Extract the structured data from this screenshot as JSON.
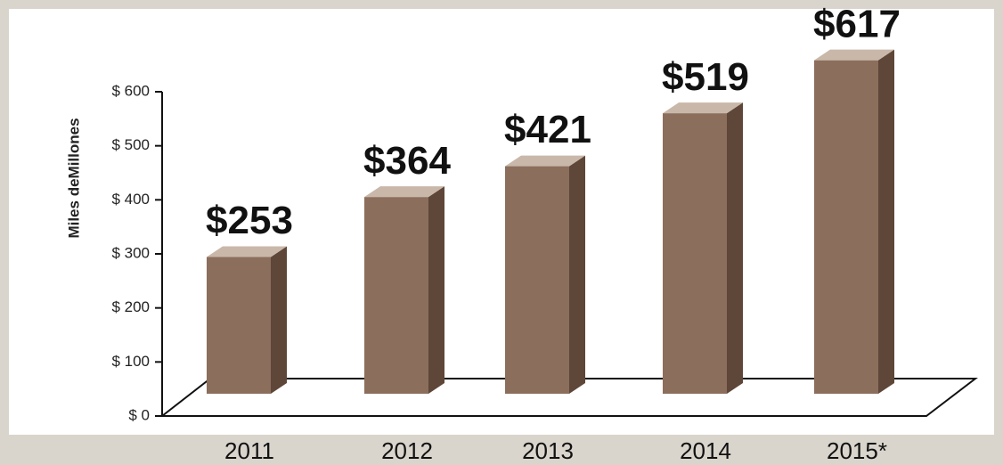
{
  "chart_data": {
    "type": "bar",
    "y_label": "Miles deMillones",
    "categories": [
      "2011",
      "2012",
      "2013",
      "2014",
      "2015*"
    ],
    "values": [
      253,
      364,
      421,
      519,
      617
    ],
    "value_labels": [
      "$253",
      "$364",
      "$421",
      "$519",
      "$617"
    ],
    "color": "#8c6e5c",
    "ylim": [
      0,
      600
    ],
    "yticks": [
      {
        "value": 0,
        "label": "$ 0"
      },
      {
        "value": 100,
        "label": "$ 100"
      },
      {
        "value": 200,
        "label": "$ 200"
      },
      {
        "value": 300,
        "label": "$ 300"
      },
      {
        "value": 400,
        "label": "$ 400"
      },
      {
        "value": 500,
        "label": "$ 500"
      },
      {
        "value": 600,
        "label": "$ 600"
      }
    ]
  }
}
